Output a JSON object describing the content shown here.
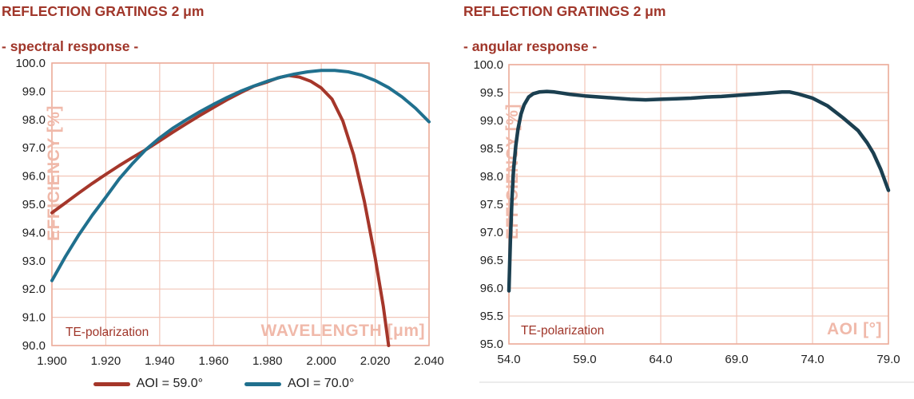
{
  "page": {
    "background": "#ffffff"
  },
  "colors": {
    "title_red": "#A0362A",
    "annotation_red": "#A0362A",
    "axis_title_pink": "#F0B9AA",
    "grid_pink": "#F2C6B8",
    "border_pink": "#ECAD9B",
    "tick_text": "#1f1f1f",
    "series_red": "#A5362A",
    "series_teal": "#20708E",
    "series_dark_teal": "#1B3F50"
  },
  "chart_data": [
    {
      "type": "line",
      "title": "REFLECTION GRATINGS 2 μm",
      "subtitle": "- spectral response -",
      "xlabel": "WAVELENGTH [μm]",
      "ylabel": "EFFICIENCY [%]",
      "corner_annotation": "TE-polarization",
      "xlim": [
        1.9,
        2.04
      ],
      "ylim": [
        90.0,
        100.0
      ],
      "grid": "both",
      "legend_position": "bottom-center",
      "xticks": {
        "values": [
          1.9,
          1.92,
          1.94,
          1.96,
          1.98,
          2.0,
          2.02,
          2.04
        ],
        "labels": [
          "1.900",
          "1.920",
          "1.940",
          "1.960",
          "1.980",
          "2.000",
          "2.020",
          "2.040"
        ]
      },
      "yticks": {
        "values": [
          90,
          91,
          92,
          93,
          94,
          95,
          96,
          97,
          98,
          99,
          100
        ],
        "labels": [
          "90.0",
          "91.0",
          "92.0",
          "93.0",
          "94.0",
          "95.0",
          "96.0",
          "97.0",
          "98.0",
          "99.0",
          "100.0"
        ]
      },
      "series": [
        {
          "name": "AOI = 59.0°",
          "color": "#A5362A",
          "points": [
            [
              1.9,
              94.7
            ],
            [
              1.905,
              95.05
            ],
            [
              1.91,
              95.4
            ],
            [
              1.915,
              95.74
            ],
            [
              1.92,
              96.06
            ],
            [
              1.925,
              96.37
            ],
            [
              1.93,
              96.66
            ],
            [
              1.935,
              96.94
            ],
            [
              1.94,
              97.25
            ],
            [
              1.945,
              97.56
            ],
            [
              1.95,
              97.86
            ],
            [
              1.955,
              98.15
            ],
            [
              1.96,
              98.43
            ],
            [
              1.965,
              98.7
            ],
            [
              1.97,
              98.95
            ],
            [
              1.975,
              99.18
            ],
            [
              1.98,
              99.33
            ],
            [
              1.984,
              99.48
            ],
            [
              1.988,
              99.56
            ],
            [
              1.992,
              99.5
            ],
            [
              1.996,
              99.36
            ],
            [
              2.0,
              99.12
            ],
            [
              2.004,
              98.72
            ],
            [
              2.008,
              97.95
            ],
            [
              2.012,
              96.75
            ],
            [
              2.016,
              95.1
            ],
            [
              2.02,
              93.1
            ],
            [
              2.023,
              91.4
            ],
            [
              2.025,
              90.0
            ]
          ]
        },
        {
          "name": "AOI = 70.0°",
          "color": "#20708E",
          "points": [
            [
              1.9,
              92.3
            ],
            [
              1.905,
              93.15
            ],
            [
              1.91,
              93.92
            ],
            [
              1.915,
              94.62
            ],
            [
              1.92,
              95.25
            ],
            [
              1.925,
              95.9
            ],
            [
              1.93,
              96.45
            ],
            [
              1.935,
              96.95
            ],
            [
              1.94,
              97.35
            ],
            [
              1.945,
              97.7
            ],
            [
              1.95,
              98.0
            ],
            [
              1.955,
              98.28
            ],
            [
              1.96,
              98.54
            ],
            [
              1.965,
              98.78
            ],
            [
              1.97,
              99.0
            ],
            [
              1.975,
              99.19
            ],
            [
              1.98,
              99.36
            ],
            [
              1.985,
              99.5
            ],
            [
              1.99,
              99.61
            ],
            [
              1.995,
              99.69
            ],
            [
              2.0,
              99.74
            ],
            [
              2.005,
              99.74
            ],
            [
              2.01,
              99.69
            ],
            [
              2.015,
              99.57
            ],
            [
              2.02,
              99.38
            ],
            [
              2.025,
              99.13
            ],
            [
              2.03,
              98.8
            ],
            [
              2.035,
              98.4
            ],
            [
              2.04,
              97.92
            ]
          ]
        }
      ]
    },
    {
      "type": "line",
      "title": "REFLECTION GRATINGS 2 μm",
      "subtitle": "- angular response -",
      "xlabel": "AOI [°]",
      "ylabel": "EFFICIENCY [%]",
      "corner_annotation": "TE-polarization",
      "xlim": [
        54.0,
        79.0
      ],
      "ylim": [
        95.0,
        100.0
      ],
      "grid": "both",
      "legend_position": "none",
      "xticks": {
        "values": [
          54,
          59,
          64,
          69,
          74,
          79
        ],
        "labels": [
          "54.0",
          "59.0",
          "64.0",
          "69.0",
          "74.0",
          "79.0"
        ]
      },
      "yticks": {
        "values": [
          95,
          95.5,
          96,
          96.5,
          97,
          97.5,
          98,
          98.5,
          99,
          99.5,
          100
        ],
        "labels": [
          "95.0",
          "95.5",
          "96.0",
          "96.5",
          "97.0",
          "97.5",
          "98.0",
          "98.5",
          "99.0",
          "99.5",
          "100.0"
        ]
      },
      "series": [
        {
          "color": "#1B3F50",
          "points": [
            [
              54.0,
              95.95
            ],
            [
              54.1,
              96.9
            ],
            [
              54.2,
              97.6
            ],
            [
              54.3,
              98.1
            ],
            [
              54.45,
              98.55
            ],
            [
              54.6,
              98.85
            ],
            [
              54.8,
              99.12
            ],
            [
              55.0,
              99.28
            ],
            [
              55.3,
              99.42
            ],
            [
              55.6,
              99.48
            ],
            [
              56.0,
              99.51
            ],
            [
              56.5,
              99.52
            ],
            [
              57.0,
              99.51
            ],
            [
              57.5,
              99.49
            ],
            [
              58.0,
              99.47
            ],
            [
              59.0,
              99.44
            ],
            [
              60.0,
              99.42
            ],
            [
              61.0,
              99.4
            ],
            [
              62.0,
              99.38
            ],
            [
              63.0,
              99.37
            ],
            [
              64.0,
              99.38
            ],
            [
              65.0,
              99.39
            ],
            [
              66.0,
              99.4
            ],
            [
              67.0,
              99.42
            ],
            [
              68.0,
              99.43
            ],
            [
              69.0,
              99.45
            ],
            [
              70.0,
              99.47
            ],
            [
              71.0,
              99.49
            ],
            [
              72.0,
              99.51
            ],
            [
              72.5,
              99.51
            ],
            [
              73.0,
              99.48
            ],
            [
              74.0,
              99.4
            ],
            [
              75.0,
              99.26
            ],
            [
              76.0,
              99.05
            ],
            [
              77.0,
              98.82
            ],
            [
              77.6,
              98.6
            ],
            [
              78.0,
              98.42
            ],
            [
              78.5,
              98.12
            ],
            [
              79.0,
              97.75
            ]
          ]
        }
      ]
    }
  ]
}
